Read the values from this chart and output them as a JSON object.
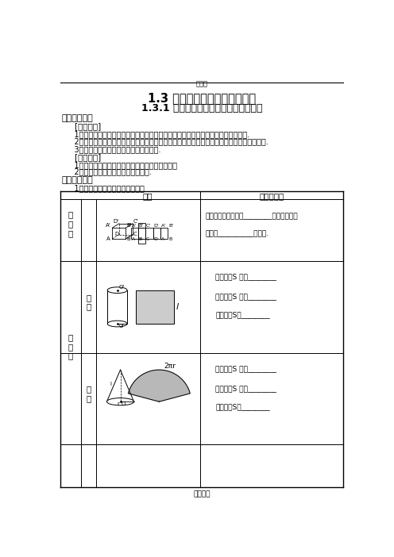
{
  "title1": "1.3 空间几何体的表面积与体积",
  "title2": "1.3.1 柱体、锥体、台体的表面积与体积",
  "print_label": "打印版",
  "section1": "【考纲要求】",
  "subsection1": "    [学习目标]",
  "item1": "    1．通过对柱体、锥体、台体的研究，掌握柱体、锥体、台体的表面积和体积的求法.",
  "item2": "    2．能运用公式求解柱体、锥体和台体的表面积，并且熟透台体、柱体和锥体之间的转换关系.",
  "item3": "    3．培养学生的空间想象能力和思维能力.",
  "subsection2": "    [目标解读]",
  "item4": "    1．求柱体、锥体、台体的表面积与体积是重点；",
  "item5": "    2．求组合体的表面积与体积是难点.",
  "section2": "【自主学习】",
  "study_item": "    1．多面体与旋转体的表面积公式",
  "col_head1": "图形",
  "col_head2": "表面积公式",
  "mian_label": "多\n面\n体",
  "xuan_label": "旋\n转\n体",
  "yuan_zhu": "圆\n柱",
  "yuan_zhui": "圆\n锥",
  "formula_r1a": "多面体的表面积就是________的面积的和，",
  "formula_r1b": "也就是__________的面积.",
  "formula_r2a": "底面积：S 底＝________",
  "formula_r2b": "侧面积：S 侧＝________",
  "formula_r2c": "表面积：S＝________",
  "formula_r3a": "底面积：S 底＝________",
  "formula_r3b": "侧面积：S 侧＝________",
  "formula_r3c": "表面积：S＝________",
  "footer": "高中数学",
  "bg": "#ffffff"
}
